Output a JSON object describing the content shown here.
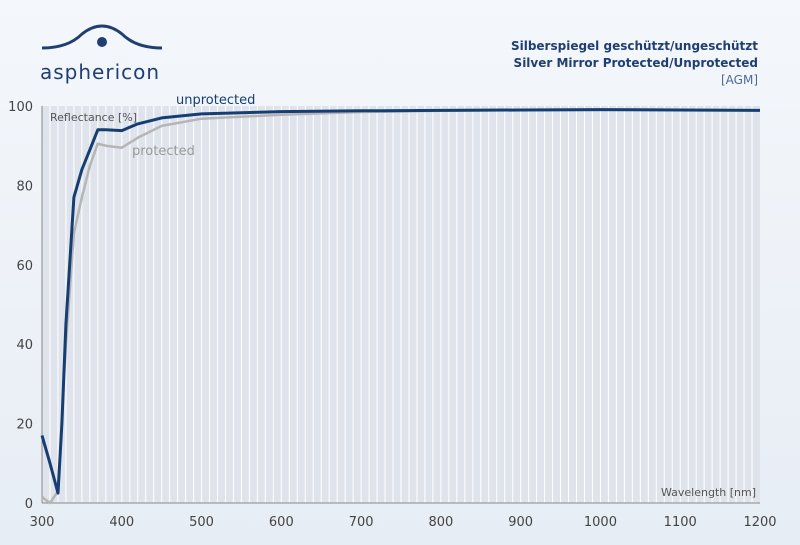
{
  "brand": {
    "name": "asphericon",
    "logo_icon": "eye-arc-logo"
  },
  "header": {
    "title_de": "Silberspiegel geschützt/ungeschützt",
    "title_en": "Silver Mirror Protected/Unprotected",
    "code": "[AGM]"
  },
  "colors": {
    "unprotected": "#173e72",
    "protected": "#b5b5b5",
    "grid": "#ffffff",
    "plot_bg": "#dfe4ec"
  },
  "chart_data": {
    "type": "line",
    "title": "Silver Mirror Protected/Unprotected",
    "xlabel": "Wavelength [nm]",
    "ylabel": "Reflectance [%]",
    "xlim": [
      300,
      1200
    ],
    "ylim": [
      0,
      100
    ],
    "xticks": [
      300,
      400,
      500,
      600,
      700,
      800,
      900,
      1000,
      1100,
      1200
    ],
    "yticks": [
      0,
      20,
      40,
      60,
      80,
      100
    ],
    "grid": "vertical",
    "series": [
      {
        "name": "unprotected",
        "x": [
          300,
          310,
          320,
          325,
          330,
          340,
          350,
          360,
          370,
          380,
          400,
          420,
          450,
          500,
          600,
          700,
          800,
          900,
          1000,
          1100,
          1200
        ],
        "y": [
          17,
          10,
          2.5,
          20,
          45,
          77,
          84,
          89,
          94,
          94,
          93.8,
          95.5,
          97,
          98,
          98.6,
          98.8,
          98.9,
          99,
          99.1,
          99,
          98.9
        ]
      },
      {
        "name": "protected",
        "x": [
          300,
          310,
          320,
          330,
          340,
          350,
          360,
          370,
          380,
          400,
          420,
          450,
          500,
          600,
          700,
          800,
          900,
          1000,
          1100,
          1200
        ],
        "y": [
          1.5,
          0,
          3,
          40,
          68,
          77,
          85,
          90.5,
          90,
          89.5,
          92,
          95,
          96.8,
          97.8,
          98.5,
          98.8,
          99,
          99,
          99,
          98.9
        ]
      }
    ]
  }
}
